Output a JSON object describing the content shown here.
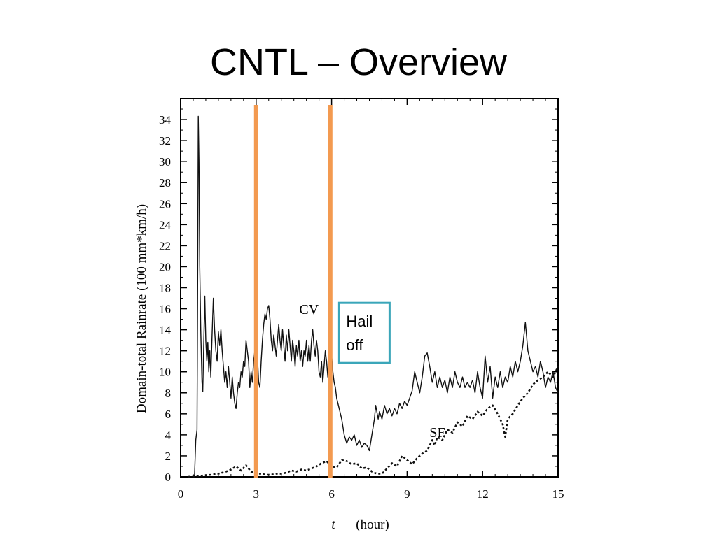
{
  "slide": {
    "title": "CNTL – Overview"
  },
  "chart_data": {
    "type": "line",
    "xlabel_var": "t",
    "xlabel_unit": "(hour)",
    "ylabel": "Domain-total  Rainrate  (100 mm*km/h)",
    "xlim": [
      0,
      15
    ],
    "ylim": [
      0,
      36
    ],
    "x_ticks": [
      0,
      3,
      6,
      9,
      12,
      15
    ],
    "y_ticks": [
      0,
      2,
      4,
      6,
      8,
      10,
      12,
      14,
      16,
      18,
      20,
      22,
      24,
      26,
      28,
      30,
      32,
      34
    ],
    "grid": false,
    "series": [
      {
        "name": "CV",
        "style": "solid",
        "points": [
          [
            0.55,
            0
          ],
          [
            0.6,
            3.5
          ],
          [
            0.65,
            4.5
          ],
          [
            0.68,
            20
          ],
          [
            0.7,
            34.3
          ],
          [
            0.73,
            30
          ],
          [
            0.76,
            20
          ],
          [
            0.8,
            14
          ],
          [
            0.85,
            9
          ],
          [
            0.88,
            8.1
          ],
          [
            0.92,
            13
          ],
          [
            0.96,
            17.2
          ],
          [
            1.0,
            13
          ],
          [
            1.04,
            11
          ],
          [
            1.08,
            12.8
          ],
          [
            1.12,
            10
          ],
          [
            1.16,
            12
          ],
          [
            1.2,
            9.5
          ],
          [
            1.25,
            13.5
          ],
          [
            1.3,
            17
          ],
          [
            1.35,
            14
          ],
          [
            1.4,
            12
          ],
          [
            1.45,
            11
          ],
          [
            1.5,
            13.8
          ],
          [
            1.55,
            12.5
          ],
          [
            1.6,
            14
          ],
          [
            1.65,
            12
          ],
          [
            1.7,
            10.5
          ],
          [
            1.75,
            9
          ],
          [
            1.8,
            10
          ],
          [
            1.85,
            8.5
          ],
          [
            1.9,
            10.5
          ],
          [
            1.95,
            9
          ],
          [
            2.0,
            7.5
          ],
          [
            2.05,
            9.5
          ],
          [
            2.1,
            8
          ],
          [
            2.15,
            7
          ],
          [
            2.2,
            6.5
          ],
          [
            2.25,
            8
          ],
          [
            2.3,
            9
          ],
          [
            2.35,
            8.5
          ],
          [
            2.4,
            10
          ],
          [
            2.45,
            9.5
          ],
          [
            2.5,
            11
          ],
          [
            2.55,
            10.5
          ],
          [
            2.6,
            13
          ],
          [
            2.65,
            12
          ],
          [
            2.7,
            11
          ],
          [
            2.75,
            8.5
          ],
          [
            2.8,
            10
          ],
          [
            2.85,
            9
          ],
          [
            2.9,
            11
          ],
          [
            2.95,
            12
          ],
          [
            3.0,
            10.5
          ],
          [
            3.05,
            11.5
          ],
          [
            3.1,
            9
          ],
          [
            3.15,
            8.5
          ],
          [
            3.2,
            11
          ],
          [
            3.25,
            13
          ],
          [
            3.3,
            14.5
          ],
          [
            3.35,
            15.5
          ],
          [
            3.4,
            15
          ],
          [
            3.45,
            16
          ],
          [
            3.5,
            16.3
          ],
          [
            3.55,
            15
          ],
          [
            3.6,
            13
          ],
          [
            3.65,
            12
          ],
          [
            3.7,
            13.5
          ],
          [
            3.75,
            12.5
          ],
          [
            3.8,
            11.5
          ],
          [
            3.85,
            13
          ],
          [
            3.9,
            14.5
          ],
          [
            3.95,
            13
          ],
          [
            4.0,
            12
          ],
          [
            4.05,
            14
          ],
          [
            4.1,
            12.5
          ],
          [
            4.15,
            11
          ],
          [
            4.2,
            13.5
          ],
          [
            4.25,
            12
          ],
          [
            4.3,
            14
          ],
          [
            4.35,
            12.5
          ],
          [
            4.4,
            11
          ],
          [
            4.45,
            13
          ],
          [
            4.5,
            12
          ],
          [
            4.55,
            10.5
          ],
          [
            4.6,
            12.5
          ],
          [
            4.65,
            11.5
          ],
          [
            4.7,
            13
          ],
          [
            4.75,
            11
          ],
          [
            4.8,
            12
          ],
          [
            4.85,
            10.5
          ],
          [
            4.9,
            12
          ],
          [
            4.95,
            11.5
          ],
          [
            5.0,
            13
          ],
          [
            5.05,
            11
          ],
          [
            5.1,
            12.5
          ],
          [
            5.15,
            11
          ],
          [
            5.2,
            13
          ],
          [
            5.25,
            14
          ],
          [
            5.3,
            12.5
          ],
          [
            5.35,
            11.5
          ],
          [
            5.4,
            13
          ],
          [
            5.45,
            12
          ],
          [
            5.5,
            10
          ],
          [
            5.55,
            9.5
          ],
          [
            5.6,
            11
          ],
          [
            5.65,
            9
          ],
          [
            5.7,
            10.5
          ],
          [
            5.75,
            12
          ],
          [
            5.8,
            11
          ],
          [
            5.85,
            9.5
          ],
          [
            5.9,
            11
          ],
          [
            5.95,
            10.5
          ],
          [
            6.0,
            11.5
          ],
          [
            6.05,
            10
          ],
          [
            6.1,
            9
          ],
          [
            6.15,
            8.5
          ],
          [
            6.2,
            7.5
          ],
          [
            6.3,
            6.5
          ],
          [
            6.4,
            5.5
          ],
          [
            6.5,
            4
          ],
          [
            6.6,
            3.2
          ],
          [
            6.7,
            3.8
          ],
          [
            6.8,
            3.5
          ],
          [
            6.9,
            4
          ],
          [
            7.0,
            3
          ],
          [
            7.1,
            3.5
          ],
          [
            7.2,
            2.8
          ],
          [
            7.3,
            3.2
          ],
          [
            7.4,
            3
          ],
          [
            7.5,
            2.5
          ],
          [
            7.6,
            4
          ],
          [
            7.7,
            5.5
          ],
          [
            7.75,
            6.8
          ],
          [
            7.85,
            5.5
          ],
          [
            7.9,
            6.2
          ],
          [
            8.0,
            5.5
          ],
          [
            8.1,
            6.8
          ],
          [
            8.2,
            6
          ],
          [
            8.3,
            6.5
          ],
          [
            8.4,
            5.8
          ],
          [
            8.5,
            6.5
          ],
          [
            8.6,
            6
          ],
          [
            8.7,
            7
          ],
          [
            8.8,
            6.5
          ],
          [
            8.9,
            7.2
          ],
          [
            9.0,
            6.8
          ],
          [
            9.1,
            7.5
          ],
          [
            9.2,
            8.2
          ],
          [
            9.3,
            10
          ],
          [
            9.4,
            9
          ],
          [
            9.5,
            8
          ],
          [
            9.6,
            9.5
          ],
          [
            9.7,
            11.5
          ],
          [
            9.8,
            11.8
          ],
          [
            9.9,
            10.5
          ],
          [
            10.0,
            9
          ],
          [
            10.1,
            10
          ],
          [
            10.2,
            8.5
          ],
          [
            10.3,
            9.5
          ],
          [
            10.4,
            8.5
          ],
          [
            10.5,
            9.2
          ],
          [
            10.6,
            8
          ],
          [
            10.7,
            9.5
          ],
          [
            10.8,
            8.5
          ],
          [
            10.9,
            10
          ],
          [
            11.0,
            9
          ],
          [
            11.1,
            8.5
          ],
          [
            11.2,
            9.5
          ],
          [
            11.3,
            8.5
          ],
          [
            11.4,
            9
          ],
          [
            11.5,
            8.5
          ],
          [
            11.6,
            9.2
          ],
          [
            11.7,
            8
          ],
          [
            11.8,
            10
          ],
          [
            11.9,
            8.5
          ],
          [
            12.0,
            7.5
          ],
          [
            12.1,
            11.5
          ],
          [
            12.2,
            9
          ],
          [
            12.3,
            10.5
          ],
          [
            12.4,
            7.5
          ],
          [
            12.5,
            9.5
          ],
          [
            12.6,
            8.5
          ],
          [
            12.7,
            10
          ],
          [
            12.8,
            8.5
          ],
          [
            12.9,
            9.5
          ],
          [
            13.0,
            9
          ],
          [
            13.1,
            10.5
          ],
          [
            13.2,
            9.5
          ],
          [
            13.3,
            11
          ],
          [
            13.4,
            10
          ],
          [
            13.5,
            11
          ],
          [
            13.6,
            12.5
          ],
          [
            13.7,
            14.7
          ],
          [
            13.8,
            12
          ],
          [
            13.9,
            11
          ],
          [
            14.0,
            10
          ],
          [
            14.1,
            10.5
          ],
          [
            14.2,
            9.5
          ],
          [
            14.3,
            11
          ],
          [
            14.4,
            10
          ],
          [
            14.5,
            8.5
          ],
          [
            14.6,
            9.5
          ],
          [
            14.7,
            9
          ],
          [
            14.8,
            10
          ],
          [
            14.9,
            8.5
          ],
          [
            15.0,
            8
          ]
        ]
      },
      {
        "name": "SF",
        "style": "dashed",
        "points": [
          [
            0.3,
            0
          ],
          [
            0.8,
            0.1
          ],
          [
            1.2,
            0.2
          ],
          [
            1.5,
            0.3
          ],
          [
            1.8,
            0.5
          ],
          [
            2.0,
            0.7
          ],
          [
            2.2,
            1.0
          ],
          [
            2.4,
            0.6
          ],
          [
            2.6,
            1.1
          ],
          [
            2.8,
            0.5
          ],
          [
            3.0,
            0.3
          ],
          [
            3.2,
            0.3
          ],
          [
            3.4,
            0.2
          ],
          [
            3.6,
            0.2
          ],
          [
            3.8,
            0.3
          ],
          [
            4.0,
            0.3
          ],
          [
            4.2,
            0.4
          ],
          [
            4.4,
            0.6
          ],
          [
            4.6,
            0.5
          ],
          [
            4.8,
            0.7
          ],
          [
            5.0,
            0.6
          ],
          [
            5.2,
            0.8
          ],
          [
            5.4,
            1.0
          ],
          [
            5.6,
            1.3
          ],
          [
            5.8,
            1.5
          ],
          [
            6.0,
            1.0
          ],
          [
            6.2,
            0.9
          ],
          [
            6.4,
            1.6
          ],
          [
            6.6,
            1.5
          ],
          [
            6.8,
            1.2
          ],
          [
            7.0,
            1.3
          ],
          [
            7.2,
            0.8
          ],
          [
            7.4,
            0.9
          ],
          [
            7.6,
            0.5
          ],
          [
            7.8,
            0.3
          ],
          [
            8.0,
            0.3
          ],
          [
            8.2,
            0.8
          ],
          [
            8.4,
            1.3
          ],
          [
            8.6,
            1.0
          ],
          [
            8.8,
            2.0
          ],
          [
            9.0,
            1.6
          ],
          [
            9.2,
            1.2
          ],
          [
            9.4,
            1.8
          ],
          [
            9.6,
            2.2
          ],
          [
            9.8,
            2.5
          ],
          [
            10.0,
            3.5
          ],
          [
            10.1,
            3.0
          ],
          [
            10.2,
            3.8
          ],
          [
            10.4,
            3.5
          ],
          [
            10.6,
            4.5
          ],
          [
            10.8,
            4.2
          ],
          [
            11.0,
            5.2
          ],
          [
            11.2,
            4.8
          ],
          [
            11.4,
            5.8
          ],
          [
            11.6,
            5.5
          ],
          [
            11.8,
            6.2
          ],
          [
            12.0,
            5.8
          ],
          [
            12.2,
            6.5
          ],
          [
            12.4,
            6.8
          ],
          [
            12.6,
            6.0
          ],
          [
            12.8,
            5.0
          ],
          [
            12.9,
            3.8
          ],
          [
            13.0,
            5.5
          ],
          [
            13.2,
            6.0
          ],
          [
            13.4,
            6.8
          ],
          [
            13.6,
            7.5
          ],
          [
            13.8,
            8.0
          ],
          [
            14.0,
            8.8
          ],
          [
            14.2,
            9.2
          ],
          [
            14.4,
            9.5
          ],
          [
            14.6,
            10.0
          ],
          [
            14.8,
            9.5
          ],
          [
            15.0,
            10.5
          ]
        ]
      }
    ],
    "series_labels": [
      {
        "text": "CV",
        "at": [
          5.1,
          15.5
        ]
      },
      {
        "text": "SF",
        "at": [
          10.2,
          3.8
        ]
      }
    ],
    "markers": [
      {
        "name": "hail-marker-t3",
        "x": 3.0,
        "color": "#f39a50"
      },
      {
        "name": "hail-marker-t6",
        "x": 5.95,
        "color": "#f39a50"
      }
    ],
    "annotation": {
      "lines": [
        "Hail",
        "off"
      ],
      "border_color": "#3aa6b9",
      "anchor": [
        6.3,
        10.7
      ]
    }
  }
}
